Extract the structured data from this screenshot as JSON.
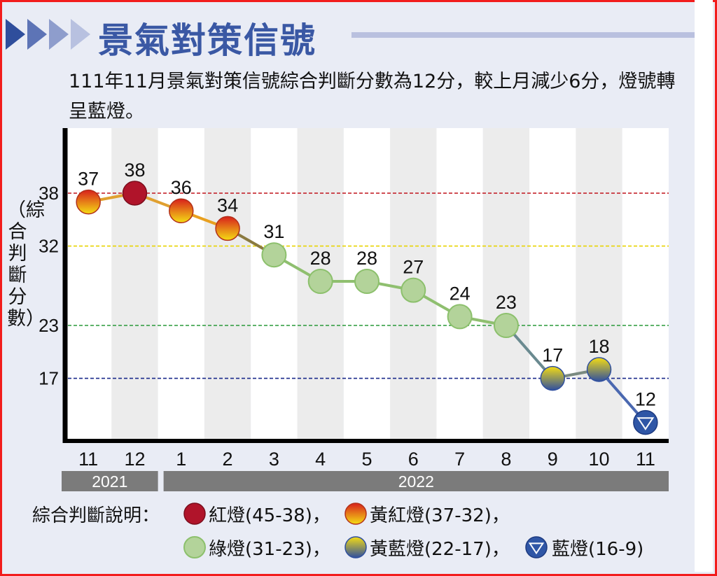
{
  "title": "景氣對策信號",
  "subtitle": "111年11月景氣對策信號綜合判斷分數為12分，較上月減少6分，燈號轉呈藍燈。",
  "chart_data": {
    "type": "line",
    "title": "景氣對策信號",
    "ylabel": "（綜合判斷分數）",
    "xlabel": "",
    "categories": [
      "11",
      "12",
      "1",
      "2",
      "3",
      "4",
      "5",
      "6",
      "7",
      "8",
      "9",
      "10",
      "11"
    ],
    "years": [
      {
        "label": "2021",
        "span": [
          0,
          1
        ]
      },
      {
        "label": "2022",
        "span": [
          2,
          12
        ]
      }
    ],
    "values": [
      37,
      38,
      36,
      34,
      31,
      28,
      28,
      27,
      24,
      23,
      17,
      18,
      12
    ],
    "yticks": [
      38,
      32,
      23,
      17
    ],
    "threshold_lines": [
      {
        "value": 38,
        "color": "#c0141c"
      },
      {
        "value": 32,
        "color": "#e8d400"
      },
      {
        "value": 23,
        "color": "#2a9a3a"
      },
      {
        "value": 17,
        "color": "#1a2a8a"
      }
    ],
    "grid": "alternating column bands"
  },
  "legend": {
    "label": "綜合判斷說明：",
    "items": [
      {
        "type": "red",
        "text": "紅燈(45-38)，"
      },
      {
        "type": "yellowred",
        "text": "黃紅燈(37-32)，"
      },
      {
        "type": "green",
        "text": "綠燈(31-23)，"
      },
      {
        "type": "yellowblue",
        "text": "黃藍燈(22-17)，"
      },
      {
        "type": "blue",
        "text": "藍燈(16-9)"
      }
    ]
  },
  "colors": {
    "accent": "#3a58a4",
    "red": "#b0142a",
    "green": "#b3d39a",
    "blue": "#2f56a6",
    "yearbar": "#7b7b7b"
  }
}
